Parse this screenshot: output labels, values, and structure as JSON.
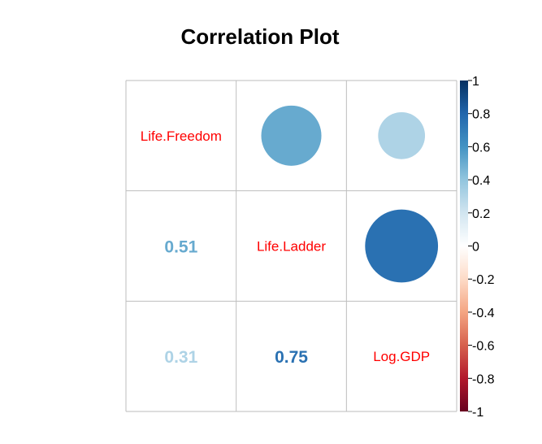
{
  "chart_data": {
    "type": "heatmap",
    "title": "Correlation Plot",
    "variables": [
      "Life.Freedom",
      "Life.Ladder",
      "Log.GDP"
    ],
    "matrix": [
      [
        1.0,
        0.51,
        0.31
      ],
      [
        0.51,
        1.0,
        0.75
      ],
      [
        0.31,
        0.75,
        1.0
      ]
    ],
    "upper_method": "circle",
    "lower_method": "number",
    "diagonal": "variable name",
    "lower_labels": [
      {
        "row": 1,
        "col": 0,
        "text": "0.51"
      },
      {
        "row": 2,
        "col": 0,
        "text": "0.31"
      },
      {
        "row": 2,
        "col": 1,
        "text": "0.75"
      }
    ],
    "colorbar": {
      "range": [
        -1,
        1
      ],
      "ticks": [
        "1",
        "0.8",
        "0.6",
        "0.4",
        "0.2",
        "0",
        "-0.2",
        "-0.4",
        "-0.6",
        "-0.8",
        "-1"
      ],
      "tick_values": [
        1,
        0.8,
        0.6,
        0.4,
        0.2,
        0,
        -0.2,
        -0.4,
        -0.6,
        -0.8,
        -1
      ],
      "colors": [
        "#67001F",
        "#B2182B",
        "#D6604D",
        "#F4A582",
        "#FDDBC7",
        "#FFFFFF",
        "#D1E5F0",
        "#92C5DE",
        "#4393C3",
        "#2166AC",
        "#053061"
      ]
    },
    "grid": true,
    "legend_placement": "right",
    "diag_label_color": "#FF0000"
  }
}
